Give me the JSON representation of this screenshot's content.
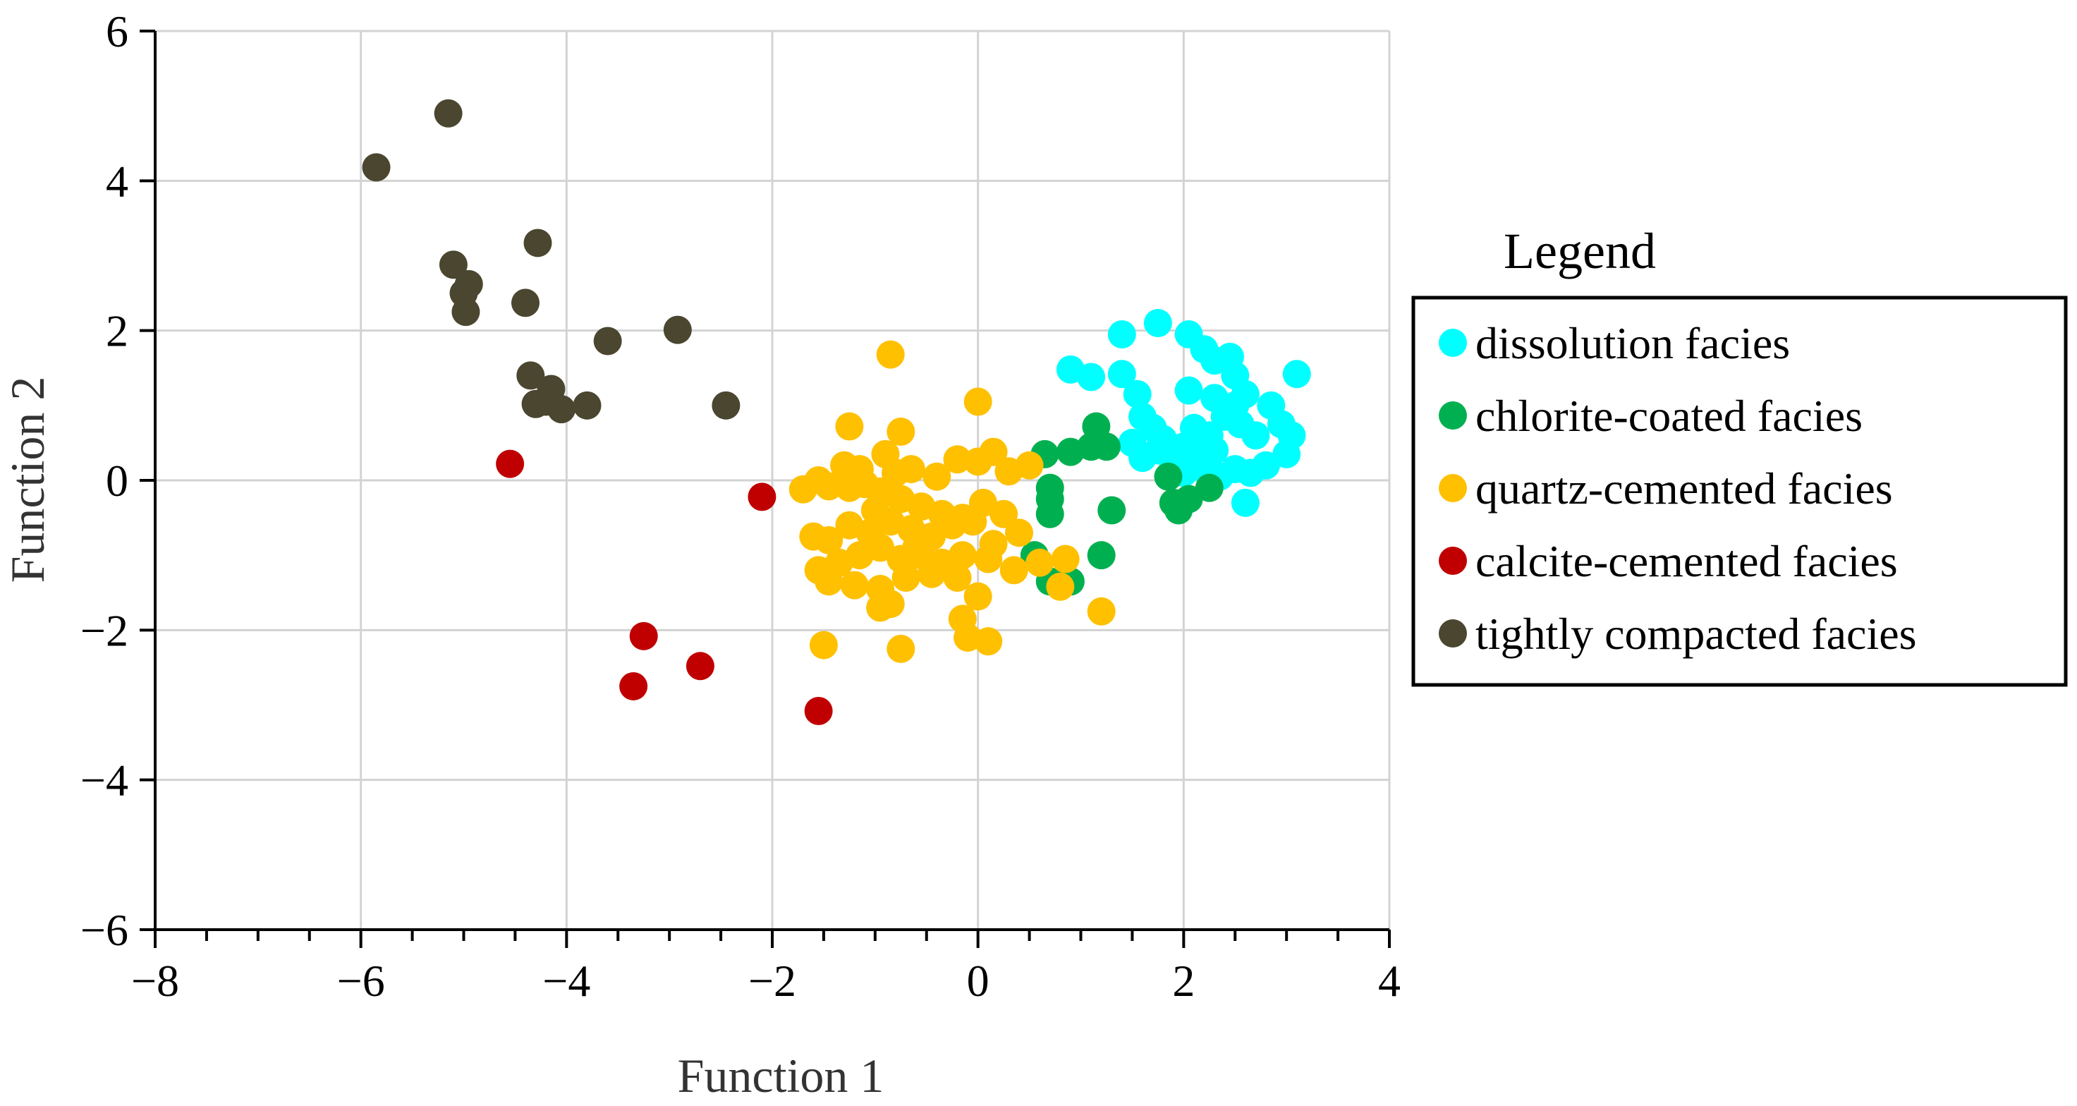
{
  "chart_data": {
    "type": "scatter",
    "title": "",
    "xlabel": "Function 1",
    "ylabel": "Function 2",
    "xlim": [
      -8,
      4
    ],
    "ylim": [
      -6,
      6
    ],
    "xticks": [
      -8,
      -6,
      -4,
      -2,
      0,
      2,
      4
    ],
    "yticks": [
      -6,
      -4,
      -2,
      0,
      2,
      4,
      6
    ],
    "xtick_labels": [
      "−8",
      "−6",
      "−4",
      "−2",
      "0",
      "2",
      "4"
    ],
    "ytick_labels": [
      "−6",
      "−4",
      "−2",
      "0",
      "2",
      "4",
      "6"
    ],
    "grid": true,
    "legend": {
      "title": "Legend",
      "position": "right"
    },
    "series": [
      {
        "name": "dissolution facies",
        "color": "#00ffff",
        "points": [
          [
            0.9,
            1.48
          ],
          [
            1.1,
            1.38
          ],
          [
            1.4,
            1.42
          ],
          [
            1.55,
            1.15
          ],
          [
            1.4,
            1.95
          ],
          [
            1.75,
            2.1
          ],
          [
            2.05,
            1.95
          ],
          [
            2.2,
            1.75
          ],
          [
            2.3,
            1.6
          ],
          [
            2.45,
            1.65
          ],
          [
            2.5,
            1.4
          ],
          [
            2.05,
            1.2
          ],
          [
            2.3,
            1.1
          ],
          [
            2.5,
            1.0
          ],
          [
            2.6,
            1.15
          ],
          [
            2.85,
            1.0
          ],
          [
            3.1,
            1.42
          ],
          [
            1.6,
            0.85
          ],
          [
            1.7,
            0.7
          ],
          [
            1.5,
            0.5
          ],
          [
            1.6,
            0.3
          ],
          [
            1.8,
            0.55
          ],
          [
            2.0,
            0.45
          ],
          [
            2.1,
            0.7
          ],
          [
            2.25,
            0.6
          ],
          [
            2.4,
            0.85
          ],
          [
            2.55,
            0.75
          ],
          [
            2.7,
            0.6
          ],
          [
            2.95,
            0.75
          ],
          [
            3.05,
            0.6
          ],
          [
            2.0,
            0.1
          ],
          [
            2.2,
            0.15
          ],
          [
            2.35,
            0.05
          ],
          [
            2.5,
            0.15
          ],
          [
            2.8,
            0.2
          ],
          [
            3.0,
            0.35
          ],
          [
            2.65,
            0.1
          ],
          [
            2.6,
            -0.3
          ],
          [
            2.15,
            0.35
          ],
          [
            1.9,
            0.2
          ],
          [
            1.75,
            0.4
          ],
          [
            2.3,
            0.4
          ]
        ]
      },
      {
        "name": "chlorite-coated facies",
        "color": "#00b050",
        "points": [
          [
            0.65,
            0.35
          ],
          [
            0.9,
            0.38
          ],
          [
            1.1,
            0.45
          ],
          [
            1.15,
            0.72
          ],
          [
            1.25,
            0.45
          ],
          [
            0.7,
            -0.1
          ],
          [
            0.7,
            -0.25
          ],
          [
            0.7,
            -0.45
          ],
          [
            1.3,
            -0.4
          ],
          [
            0.55,
            -1.0
          ],
          [
            1.2,
            -1.0
          ],
          [
            0.7,
            -1.35
          ],
          [
            0.9,
            -1.35
          ],
          [
            1.85,
            0.05
          ],
          [
            1.9,
            -0.3
          ],
          [
            2.05,
            -0.25
          ],
          [
            1.95,
            -0.4
          ],
          [
            2.25,
            -0.1
          ]
        ]
      },
      {
        "name": "quartz-cemented facies",
        "color": "#ffc000",
        "points": [
          [
            -0.85,
            1.68
          ],
          [
            0.0,
            1.05
          ],
          [
            -1.25,
            0.72
          ],
          [
            -0.75,
            0.65
          ],
          [
            -1.55,
            0.0
          ],
          [
            -1.45,
            -0.08
          ],
          [
            -1.7,
            -0.12
          ],
          [
            -1.3,
            0.2
          ],
          [
            -1.15,
            0.15
          ],
          [
            -0.9,
            0.35
          ],
          [
            -0.8,
            0.1
          ],
          [
            -0.65,
            0.15
          ],
          [
            -0.4,
            0.05
          ],
          [
            -0.2,
            0.28
          ],
          [
            0.0,
            0.25
          ],
          [
            0.15,
            0.38
          ],
          [
            0.3,
            0.12
          ],
          [
            0.5,
            0.2
          ],
          [
            -1.25,
            -0.1
          ],
          [
            -1.1,
            -0.05
          ],
          [
            -0.95,
            -0.15
          ],
          [
            -0.75,
            -0.25
          ],
          [
            -0.55,
            -0.35
          ],
          [
            -0.35,
            -0.45
          ],
          [
            -0.15,
            -0.5
          ],
          [
            0.05,
            -0.3
          ],
          [
            -1.6,
            -0.75
          ],
          [
            -1.45,
            -0.8
          ],
          [
            -1.25,
            -0.6
          ],
          [
            -1.05,
            -0.7
          ],
          [
            -0.85,
            -0.55
          ],
          [
            -0.65,
            -0.65
          ],
          [
            -0.45,
            -0.75
          ],
          [
            -0.25,
            -0.6
          ],
          [
            -0.05,
            -0.55
          ],
          [
            0.25,
            -0.45
          ],
          [
            0.4,
            -0.7
          ],
          [
            -1.55,
            -1.2
          ],
          [
            -1.35,
            -1.1
          ],
          [
            -1.15,
            -1.0
          ],
          [
            -0.95,
            -0.9
          ],
          [
            -0.75,
            -1.05
          ],
          [
            -0.55,
            -1.0
          ],
          [
            -0.35,
            -1.1
          ],
          [
            -0.15,
            -1.0
          ],
          [
            0.1,
            -1.05
          ],
          [
            0.35,
            -1.2
          ],
          [
            0.6,
            -1.1
          ],
          [
            0.85,
            -1.05
          ],
          [
            -1.45,
            -1.35
          ],
          [
            -1.2,
            -1.4
          ],
          [
            -0.95,
            -1.45
          ],
          [
            -0.7,
            -1.3
          ],
          [
            -0.45,
            -1.25
          ],
          [
            -0.2,
            -1.3
          ],
          [
            0.0,
            -1.55
          ],
          [
            0.8,
            -1.42
          ],
          [
            -0.95,
            -1.7
          ],
          [
            -0.85,
            -1.65
          ],
          [
            -0.15,
            -1.85
          ],
          [
            1.2,
            -1.75
          ],
          [
            -1.5,
            -2.2
          ],
          [
            -0.75,
            -2.25
          ],
          [
            -0.1,
            -2.1
          ],
          [
            0.1,
            -2.15
          ],
          [
            -1.0,
            -0.4
          ],
          [
            -0.6,
            -0.9
          ],
          [
            0.15,
            -0.85
          ]
        ]
      },
      {
        "name": "calcite-cemented facies",
        "color": "#c00000",
        "points": [
          [
            -4.55,
            0.22
          ],
          [
            -2.1,
            -0.22
          ],
          [
            -3.25,
            -2.08
          ],
          [
            -2.7,
            -2.48
          ],
          [
            -3.35,
            -2.75
          ],
          [
            -1.55,
            -3.08
          ]
        ]
      },
      {
        "name": "tightly compacted facies",
        "color": "#4a4630",
        "points": [
          [
            -5.15,
            4.9
          ],
          [
            -5.85,
            4.18
          ],
          [
            -5.1,
            2.88
          ],
          [
            -4.28,
            3.17
          ],
          [
            -4.95,
            2.62
          ],
          [
            -5.0,
            2.5
          ],
          [
            -4.98,
            2.25
          ],
          [
            -4.4,
            2.37
          ],
          [
            -3.6,
            1.86
          ],
          [
            -2.92,
            2.01
          ],
          [
            -4.35,
            1.4
          ],
          [
            -4.15,
            1.22
          ],
          [
            -4.3,
            1.02
          ],
          [
            -4.2,
            1.05
          ],
          [
            -4.05,
            0.95
          ],
          [
            -3.8,
            1.0
          ],
          [
            -2.45,
            1.0
          ]
        ]
      }
    ]
  }
}
